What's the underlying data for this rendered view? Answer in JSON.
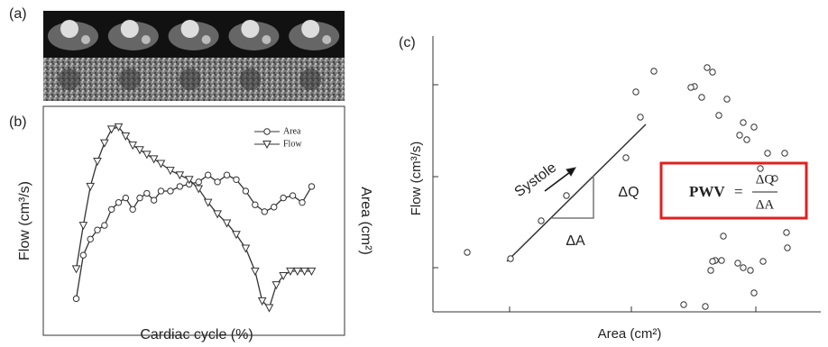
{
  "panel_a": {
    "label": "(a)"
  },
  "chart_data": [
    {
      "type": "line",
      "panel_label": "(b)",
      "x_label": "Cardiac cycle (%)",
      "y_label": "Flow (cm³/s)",
      "y2_label": "Area (cm²)",
      "xlim": [
        -14,
        114
      ],
      "ylim": [
        0,
        100
      ],
      "series": [
        {
          "name": "Area",
          "color": "#333333",
          "marker": "circle",
          "x": [
            0,
            3,
            6,
            9,
            12,
            15,
            18,
            21,
            24,
            27,
            30,
            33,
            36,
            40,
            44,
            48,
            52,
            56,
            60,
            64,
            68,
            72,
            76,
            80,
            84,
            88,
            92,
            96,
            100
          ],
          "values": [
            16,
            35,
            42,
            46,
            48,
            55,
            58,
            60,
            55,
            60,
            62,
            59,
            63,
            63,
            65,
            66,
            67,
            70,
            67,
            70,
            68,
            63,
            57,
            54,
            56,
            60,
            61,
            58,
            65
          ]
        },
        {
          "name": "Flow",
          "color": "#333333",
          "marker": "triangle",
          "x": [
            0,
            3,
            6,
            9,
            12,
            15,
            18,
            21,
            24,
            27,
            30,
            33,
            36,
            40,
            44,
            48,
            52,
            56,
            60,
            64,
            68,
            72,
            76,
            79,
            82,
            85,
            88,
            91,
            94,
            97,
            100
          ],
          "values": [
            29,
            48,
            65,
            76,
            84,
            90,
            91,
            87,
            83,
            81,
            79,
            77,
            75,
            72,
            70,
            68,
            64,
            58,
            53,
            49,
            44,
            38,
            28,
            15,
            12,
            22,
            26,
            28,
            28,
            28,
            28
          ]
        }
      ]
    },
    {
      "type": "scatter",
      "panel_label": "(c)",
      "x_label": "Area (cm²)",
      "y_label": "Flow (cm³/s)",
      "xlim": [
        0,
        430
      ],
      "ylim": [
        0,
        306
      ],
      "x": [
        38,
        86,
        120,
        148,
        214,
        230,
        225,
        245,
        304,
        310,
        290,
        286,
        298,
        326,
        317,
        344,
        356,
        340,
        348,
        371,
        390,
        363,
        379,
        392,
        393,
        322,
        366,
        313,
        320,
        338,
        344,
        352,
        310,
        308,
        356,
        278,
        302
      ],
      "values": [
        66,
        59,
        101,
        129,
        171,
        216,
        244,
        267,
        271,
        266,
        250,
        249,
        238,
        236,
        218,
        210,
        205,
        196,
        191,
        176,
        176,
        159,
        148,
        88,
        71,
        84,
        56,
        57,
        57,
        54,
        49,
        46,
        56,
        46,
        21,
        8,
        6
      ],
      "annotations": {
        "systole": "Systole",
        "dq": "ΔQ",
        "da": "ΔA"
      },
      "formula": {
        "lhs": "PWV",
        "eq": "=",
        "numerator": "ΔQ",
        "denominator": "ΔA"
      }
    }
  ]
}
